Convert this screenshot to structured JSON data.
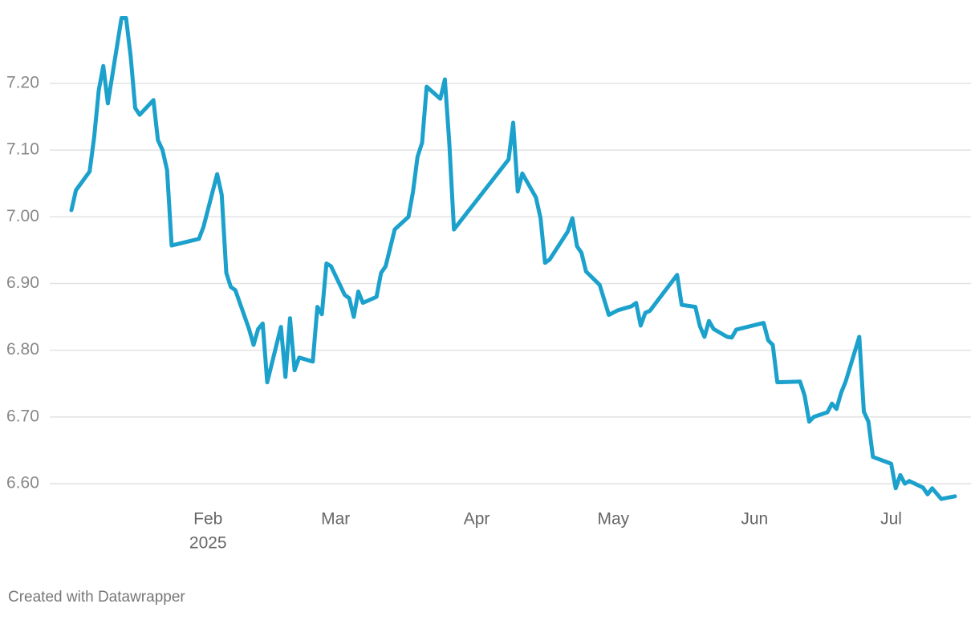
{
  "chart_data": {
    "type": "line",
    "x": [
      "2025-01-02",
      "2025-01-03",
      "2025-01-06",
      "2025-01-07",
      "2025-01-08",
      "2025-01-09",
      "2025-01-10",
      "2025-01-13",
      "2025-01-14",
      "2025-01-15",
      "2025-01-16",
      "2025-01-17",
      "2025-01-20",
      "2025-01-21",
      "2025-01-22",
      "2025-01-23",
      "2025-01-24",
      "2025-01-30",
      "2025-01-31",
      "2025-02-03",
      "2025-02-04",
      "2025-02-05",
      "2025-02-06",
      "2025-02-07",
      "2025-02-10",
      "2025-02-11",
      "2025-02-12",
      "2025-02-13",
      "2025-02-14",
      "2025-02-17",
      "2025-02-18",
      "2025-02-19",
      "2025-02-20",
      "2025-02-21",
      "2025-02-24",
      "2025-02-25",
      "2025-02-26",
      "2025-02-27",
      "2025-02-28",
      "2025-03-03",
      "2025-03-04",
      "2025-03-05",
      "2025-03-06",
      "2025-03-07",
      "2025-03-10",
      "2025-03-11",
      "2025-03-12",
      "2025-03-14",
      "2025-03-17",
      "2025-03-18",
      "2025-03-19",
      "2025-03-20",
      "2025-03-21",
      "2025-03-24",
      "2025-03-25",
      "2025-03-26",
      "2025-03-27",
      "2025-04-08",
      "2025-04-09",
      "2025-04-10",
      "2025-04-11",
      "2025-04-14",
      "2025-04-15",
      "2025-04-16",
      "2025-04-17",
      "2025-04-21",
      "2025-04-22",
      "2025-04-23",
      "2025-04-24",
      "2025-04-25",
      "2025-04-28",
      "2025-04-30",
      "2025-05-02",
      "2025-05-05",
      "2025-05-06",
      "2025-05-07",
      "2025-05-08",
      "2025-05-09",
      "2025-05-15",
      "2025-05-16",
      "2025-05-19",
      "2025-05-20",
      "2025-05-21",
      "2025-05-22",
      "2025-05-23",
      "2025-05-26",
      "2025-05-27",
      "2025-05-28",
      "2025-06-03",
      "2025-06-04",
      "2025-06-05",
      "2025-06-06",
      "2025-06-11",
      "2025-06-12",
      "2025-06-13",
      "2025-06-14",
      "2025-06-17",
      "2025-06-18",
      "2025-06-19",
      "2025-06-20",
      "2025-06-21",
      "2025-06-24",
      "2025-06-25",
      "2025-06-26",
      "2025-06-27",
      "2025-07-01",
      "2025-07-02",
      "2025-07-03",
      "2025-07-04",
      "2025-07-05",
      "2025-07-08",
      "2025-07-09",
      "2025-07-10",
      "2025-07-12",
      "2025-07-15"
    ],
    "values": [
      7.01,
      7.04,
      7.068,
      7.12,
      7.19,
      7.226,
      7.17,
      7.298,
      7.298,
      7.241,
      7.163,
      7.153,
      7.175,
      7.115,
      7.1,
      7.07,
      6.957,
      6.967,
      6.985,
      7.064,
      7.033,
      6.916,
      6.895,
      6.89,
      6.832,
      6.808,
      6.832,
      6.84,
      6.752,
      6.835,
      6.76,
      6.848,
      6.77,
      6.789,
      6.783,
      6.865,
      6.854,
      6.93,
      6.926,
      6.883,
      6.878,
      6.85,
      6.888,
      6.871,
      6.88,
      6.916,
      6.926,
      6.981,
      7.0,
      7.037,
      7.09,
      7.111,
      7.195,
      7.177,
      7.206,
      7.109,
      6.981,
      7.086,
      7.141,
      7.038,
      7.065,
      7.029,
      6.998,
      6.931,
      6.936,
      6.978,
      6.998,
      6.956,
      6.946,
      6.918,
      6.898,
      6.853,
      6.86,
      6.866,
      6.871,
      6.837,
      6.856,
      6.859,
      6.913,
      6.868,
      6.865,
      6.836,
      6.82,
      6.844,
      6.832,
      6.82,
      6.819,
      6.831,
      6.841,
      6.815,
      6.808,
      6.752,
      6.753,
      6.732,
      6.693,
      6.7,
      6.707,
      6.72,
      6.712,
      6.736,
      6.753,
      6.82,
      6.708,
      6.693,
      6.64,
      6.63,
      6.593,
      6.613,
      6.6,
      6.604,
      6.594,
      6.584,
      6.593,
      6.577,
      6.581
    ],
    "color": "#1ba1cc",
    "xlim": [
      "2025-01-02",
      "2025-07-15"
    ],
    "xticks": [
      {
        "value": "2025-02-01",
        "label": "Feb"
      },
      {
        "value": "2025-03-01",
        "label": "Mar"
      },
      {
        "value": "2025-04-01",
        "label": "Apr"
      },
      {
        "value": "2025-05-01",
        "label": "May"
      },
      {
        "value": "2025-06-01",
        "label": "Jun"
      },
      {
        "value": "2025-07-01",
        "label": "Jul"
      }
    ],
    "x_year_label": "2025",
    "ylim": [
      6.55,
      7.3
    ],
    "yticks": [
      {
        "value": 6.6,
        "label": "6.60"
      },
      {
        "value": 6.7,
        "label": "6.70"
      },
      {
        "value": 6.8,
        "label": "6.80"
      },
      {
        "value": 6.9,
        "label": "6.90"
      },
      {
        "value": 7.0,
        "label": "7.00"
      },
      {
        "value": 7.1,
        "label": "7.10"
      },
      {
        "value": 7.2,
        "label": "7.20"
      }
    ],
    "grid": true,
    "footer": "Created with Datawrapper"
  }
}
